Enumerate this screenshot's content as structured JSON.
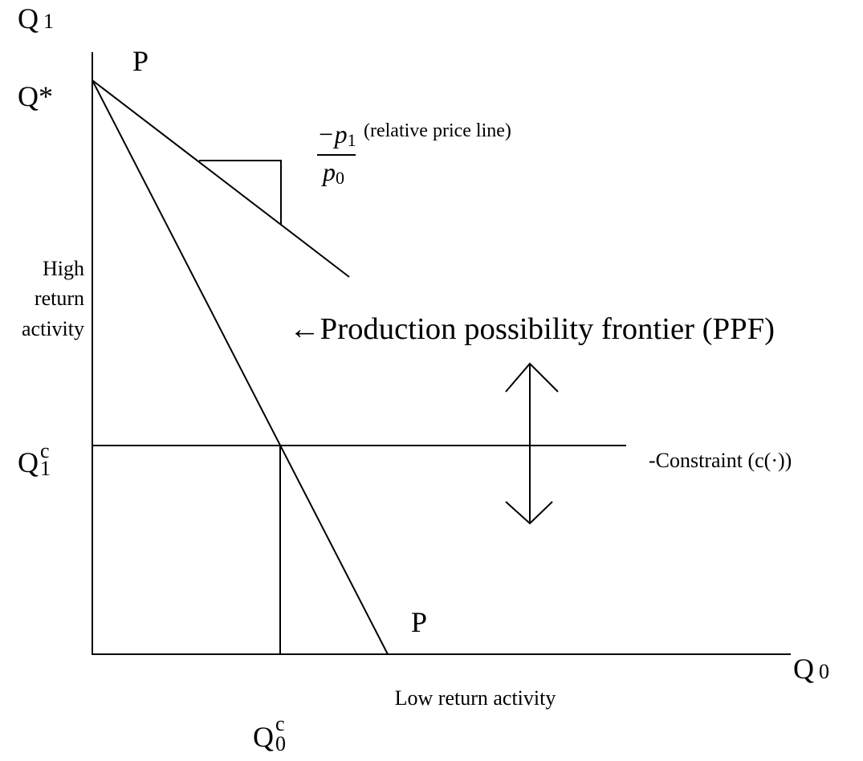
{
  "y_axis_symbol": {
    "main": "Q",
    "sub": "1"
  },
  "x_axis_symbol": {
    "main": "Q",
    "sub": "0"
  },
  "ppf_labels": [
    "P",
    "P"
  ],
  "q_star": "Q*",
  "price_ratio": {
    "numerator": "−p",
    "numerator_sub": "1",
    "denominator": "p",
    "denominator_sub": "0",
    "note": "(relative price line)"
  },
  "y_axis_title": [
    "High",
    "return",
    "activity"
  ],
  "x_axis_title": "Low return activity",
  "ppf_annotation": "←Production possibility frontier (PPF)",
  "constraint_label": "-Constraint (c(·))",
  "q1_constraint": {
    "main": "Q",
    "sup": "c",
    "sub": "1"
  },
  "q0_constraint": {
    "main": "Q",
    "sup": "c",
    "sub": "0"
  }
}
